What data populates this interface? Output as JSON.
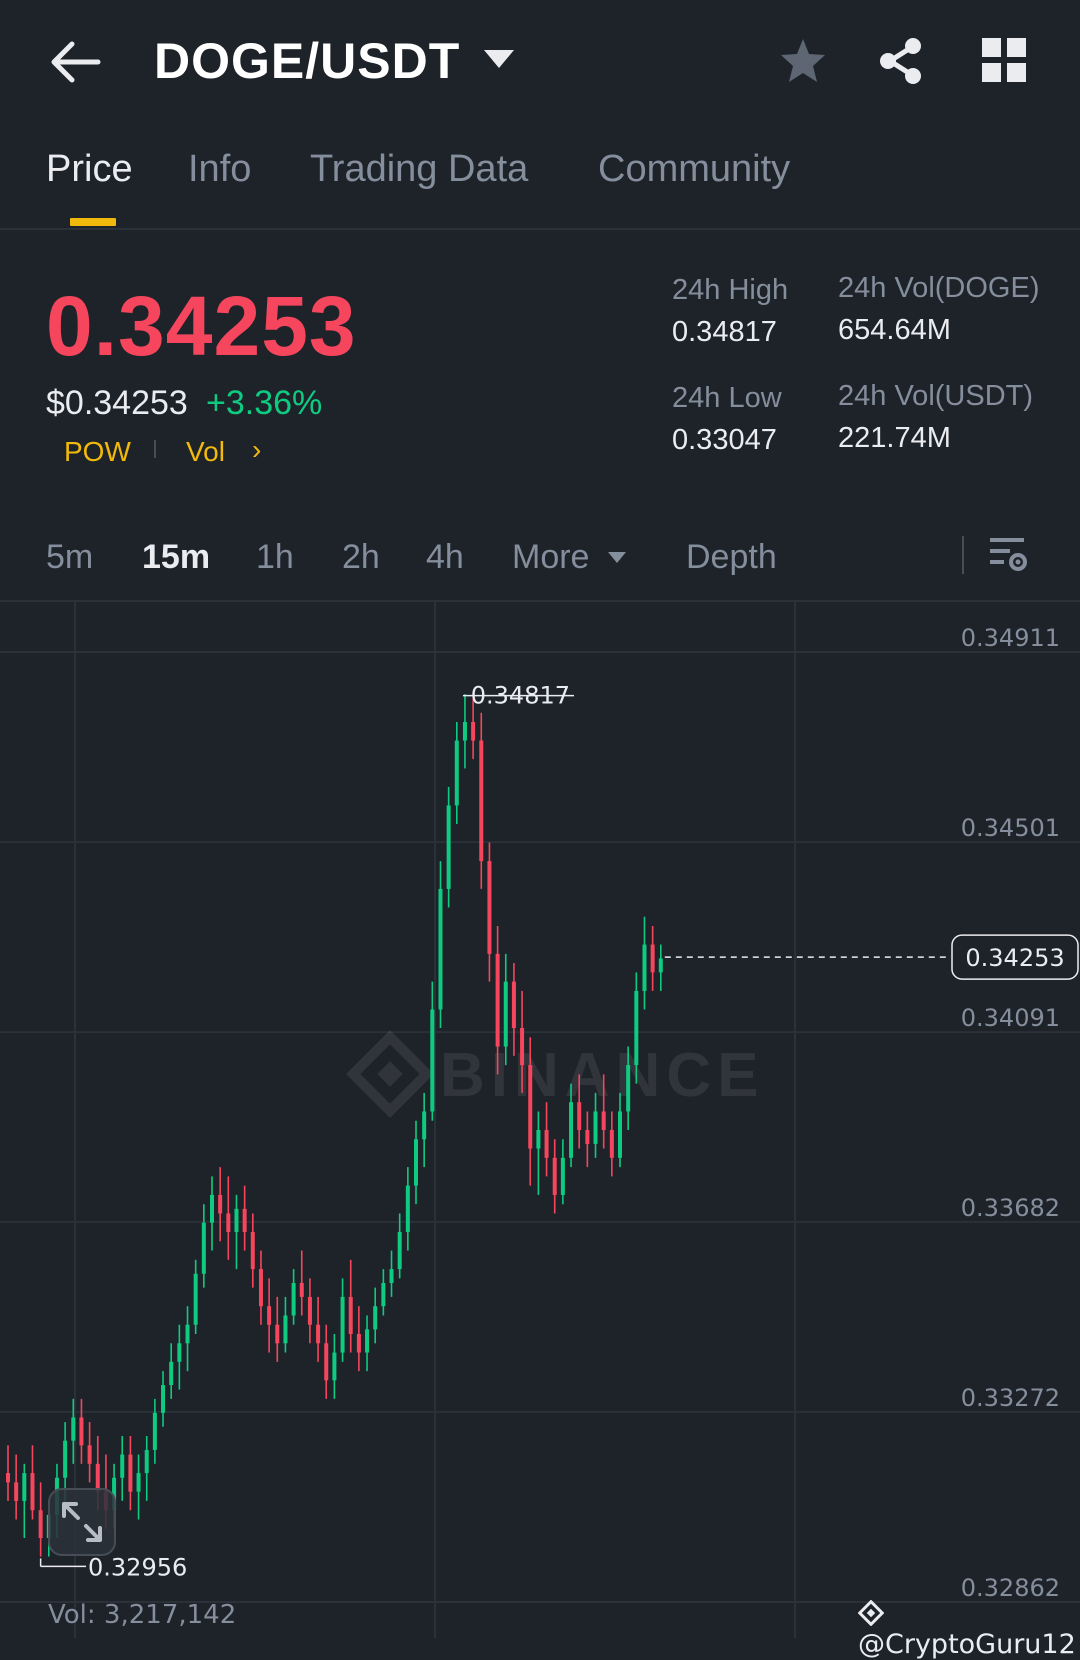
{
  "header": {
    "pair": "DOGE/USDT",
    "icons": [
      "back-arrow-icon",
      "caret-down-icon",
      "star-icon",
      "share-icon",
      "grid-icon"
    ]
  },
  "tabs": [
    {
      "label": "Price",
      "active": true
    },
    {
      "label": "Info",
      "active": false
    },
    {
      "label": "Trading Data",
      "active": false
    },
    {
      "label": "Community",
      "active": false
    }
  ],
  "ticker": {
    "last_price": "0.34253",
    "usd_price": "$0.34253",
    "change_pct": "+3.36%",
    "tags": [
      "POW",
      "Vol"
    ],
    "high_label": "24h High",
    "high_value": "0.34817",
    "low_label": "24h Low",
    "low_value": "0.33047",
    "vol_base_label": "24h Vol(DOGE)",
    "vol_base_value": "654.64M",
    "vol_quote_label": "24h Vol(USDT)",
    "vol_quote_value": "221.74M"
  },
  "intervals": [
    {
      "label": "5m",
      "active": false
    },
    {
      "label": "15m",
      "active": true
    },
    {
      "label": "1h",
      "active": false
    },
    {
      "label": "2h",
      "active": false
    },
    {
      "label": "4h",
      "active": false
    },
    {
      "label": "More",
      "active": false
    },
    {
      "label": "Depth",
      "active": false
    }
  ],
  "chart": {
    "watermark": "BINANCE",
    "price_axis": [
      "0.34911",
      "0.34501",
      "0.34091",
      "0.33682",
      "0.33272",
      "0.32862"
    ],
    "high_annotation": "0.34817",
    "low_annotation": "0.32956",
    "current_price_label": "0.34253",
    "volume_readout": "Vol: 3,217,142",
    "credit": "@CryptoGuru12",
    "colors": {
      "up": "#0ecb81",
      "down": "#f6465d",
      "grid": "#2b3139",
      "accent": "#f0b90b"
    }
  },
  "chart_data": {
    "type": "candlestick",
    "interval": "15m",
    "ylim": [
      0.32862,
      0.34911
    ],
    "y_ticks": [
      0.34911,
      0.34501,
      0.34091,
      0.33682,
      0.33272,
      0.32862
    ],
    "high": 0.34817,
    "low": 0.32956,
    "last": 0.34253,
    "candles": [
      [
        0.3314,
        0.332,
        0.3308,
        0.3312
      ],
      [
        0.3312,
        0.3318,
        0.3304,
        0.3308
      ],
      [
        0.3308,
        0.3316,
        0.33,
        0.3314
      ],
      [
        0.3314,
        0.332,
        0.3304,
        0.3306
      ],
      [
        0.3306,
        0.3312,
        0.3296,
        0.33
      ],
      [
        0.33,
        0.3308,
        0.3296,
        0.3305
      ],
      [
        0.3305,
        0.3316,
        0.33,
        0.3313
      ],
      [
        0.3313,
        0.3325,
        0.3308,
        0.3321
      ],
      [
        0.3321,
        0.333,
        0.3316,
        0.3326
      ],
      [
        0.3326,
        0.333,
        0.3316,
        0.332
      ],
      [
        0.332,
        0.3325,
        0.3312,
        0.3316
      ],
      [
        0.3316,
        0.3322,
        0.3306,
        0.331
      ],
      [
        0.331,
        0.3318,
        0.3302,
        0.3306
      ],
      [
        0.3306,
        0.3316,
        0.3302,
        0.3313
      ],
      [
        0.3313,
        0.3322,
        0.3308,
        0.3318
      ],
      [
        0.3318,
        0.3322,
        0.3306,
        0.331
      ],
      [
        0.331,
        0.3318,
        0.3304,
        0.3314
      ],
      [
        0.3314,
        0.3322,
        0.3308,
        0.3319
      ],
      [
        0.3319,
        0.333,
        0.3316,
        0.3327
      ],
      [
        0.3327,
        0.3336,
        0.3324,
        0.3333
      ],
      [
        0.3333,
        0.3342,
        0.333,
        0.3338
      ],
      [
        0.3338,
        0.3346,
        0.3332,
        0.3342
      ],
      [
        0.3342,
        0.335,
        0.3336,
        0.3346
      ],
      [
        0.3346,
        0.336,
        0.3344,
        0.3357
      ],
      [
        0.3357,
        0.3372,
        0.3354,
        0.3368
      ],
      [
        0.3368,
        0.3378,
        0.3362,
        0.3374
      ],
      [
        0.3374,
        0.338,
        0.3364,
        0.337
      ],
      [
        0.337,
        0.3378,
        0.336,
        0.3366
      ],
      [
        0.3366,
        0.3374,
        0.3358,
        0.3371
      ],
      [
        0.3371,
        0.3376,
        0.3362,
        0.3366
      ],
      [
        0.3366,
        0.337,
        0.3354,
        0.3358
      ],
      [
        0.3358,
        0.3362,
        0.3346,
        0.335
      ],
      [
        0.335,
        0.3356,
        0.334,
        0.3346
      ],
      [
        0.3346,
        0.3352,
        0.3338,
        0.3342
      ],
      [
        0.3342,
        0.3352,
        0.334,
        0.3348
      ],
      [
        0.3348,
        0.3358,
        0.3346,
        0.3355
      ],
      [
        0.3355,
        0.3362,
        0.3348,
        0.3352
      ],
      [
        0.3352,
        0.3356,
        0.3342,
        0.3346
      ],
      [
        0.3346,
        0.3352,
        0.3338,
        0.3342
      ],
      [
        0.3342,
        0.3346,
        0.333,
        0.3334
      ],
      [
        0.3334,
        0.3344,
        0.333,
        0.334
      ],
      [
        0.334,
        0.3356,
        0.3338,
        0.3352
      ],
      [
        0.3352,
        0.336,
        0.334,
        0.3344
      ],
      [
        0.3344,
        0.335,
        0.3336,
        0.334
      ],
      [
        0.334,
        0.3348,
        0.3336,
        0.3345
      ],
      [
        0.3345,
        0.3354,
        0.3342,
        0.335
      ],
      [
        0.335,
        0.3358,
        0.3348,
        0.3355
      ],
      [
        0.3355,
        0.3362,
        0.3352,
        0.3358
      ],
      [
        0.3358,
        0.337,
        0.3356,
        0.3366
      ],
      [
        0.3366,
        0.338,
        0.3362,
        0.3376
      ],
      [
        0.3376,
        0.339,
        0.3372,
        0.3386
      ],
      [
        0.3386,
        0.3396,
        0.338,
        0.3392
      ],
      [
        0.3392,
        0.342,
        0.339,
        0.3414
      ],
      [
        0.3414,
        0.3446,
        0.341,
        0.344
      ],
      [
        0.344,
        0.3462,
        0.3436,
        0.3458
      ],
      [
        0.3458,
        0.3476,
        0.3454,
        0.3472
      ],
      [
        0.3472,
        0.3482,
        0.3466,
        0.3476
      ],
      [
        0.3476,
        0.3481,
        0.3468,
        0.3472
      ],
      [
        0.3472,
        0.3478,
        0.344,
        0.3446
      ],
      [
        0.3446,
        0.345,
        0.342,
        0.3426
      ],
      [
        0.3426,
        0.3432,
        0.34,
        0.3406
      ],
      [
        0.3406,
        0.3426,
        0.3402,
        0.342
      ],
      [
        0.342,
        0.3424,
        0.3404,
        0.341
      ],
      [
        0.341,
        0.3418,
        0.3396,
        0.3402
      ],
      [
        0.3402,
        0.3408,
        0.3376,
        0.3384
      ],
      [
        0.3384,
        0.3392,
        0.3374,
        0.3388
      ],
      [
        0.3388,
        0.3394,
        0.3378,
        0.3382
      ],
      [
        0.3382,
        0.3386,
        0.337,
        0.3374
      ],
      [
        0.3374,
        0.3386,
        0.3372,
        0.3382
      ],
      [
        0.3382,
        0.3398,
        0.338,
        0.3394
      ],
      [
        0.3394,
        0.34,
        0.3384,
        0.3388
      ],
      [
        0.3388,
        0.3392,
        0.338,
        0.3385
      ],
      [
        0.3385,
        0.3396,
        0.3382,
        0.3392
      ],
      [
        0.3392,
        0.34,
        0.3384,
        0.3388
      ],
      [
        0.3388,
        0.3392,
        0.3378,
        0.3382
      ],
      [
        0.3382,
        0.3396,
        0.338,
        0.3392
      ],
      [
        0.3392,
        0.3406,
        0.3388,
        0.3402
      ],
      [
        0.3402,
        0.3422,
        0.3398,
        0.3418
      ],
      [
        0.3418,
        0.3434,
        0.3414,
        0.3428
      ],
      [
        0.3428,
        0.3432,
        0.3418,
        0.3422
      ],
      [
        0.3422,
        0.3428,
        0.3418,
        0.3425
      ]
    ]
  }
}
